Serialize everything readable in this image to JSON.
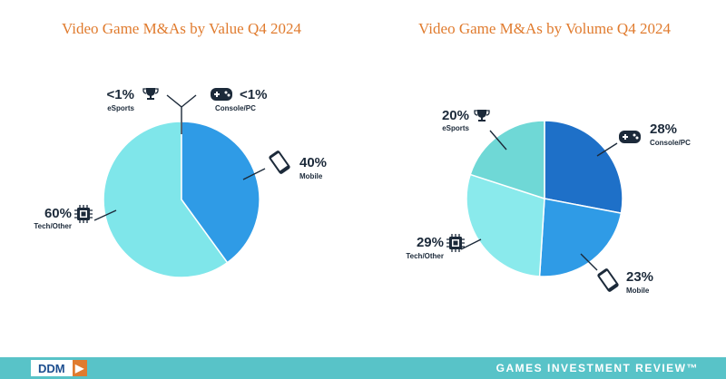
{
  "colors": {
    "light": "#7fe6ea",
    "medium": "#2f9be6",
    "dark": "#1e70c8",
    "ink": "#1c2a3a",
    "accent": "#e07b2e",
    "footer": "#58c3c8"
  },
  "chart_data": [
    {
      "type": "pie",
      "title": "Video Game M&As by Value Q4 2024",
      "slices": [
        {
          "label": "Mobile",
          "value": 40,
          "value_text": "40%",
          "color": "#2f9be6",
          "icon": "smartphone-icon"
        },
        {
          "label": "Tech/Other",
          "value": 60,
          "value_text": "60%",
          "color": "#7fe6ea",
          "icon": "chip-icon"
        },
        {
          "label": "eSports",
          "value": 0,
          "value_text": "<1%",
          "color": "#7fe6ea",
          "icon": "trophy-icon"
        },
        {
          "label": "Console/PC",
          "value": 0,
          "value_text": "<1%",
          "color": "#1e70c8",
          "icon": "gamepad-icon"
        }
      ]
    },
    {
      "type": "pie",
      "title": "Video Game M&As by Volume Q4 2024",
      "slices": [
        {
          "label": "Console/PC",
          "value": 28,
          "value_text": "28%",
          "color": "#1e70c8",
          "icon": "gamepad-icon"
        },
        {
          "label": "Mobile",
          "value": 23,
          "value_text": "23%",
          "color": "#2f9be6",
          "icon": "smartphone-icon"
        },
        {
          "label": "Tech/Other",
          "value": 29,
          "value_text": "29%",
          "color": "#8aeaec",
          "icon": "chip-icon"
        },
        {
          "label": "eSports",
          "value": 20,
          "value_text": "20%",
          "color": "#6fd8d6",
          "icon": "trophy-icon"
        }
      ]
    }
  ],
  "footer": {
    "logo": "DDM",
    "logo_arrow": "▶",
    "brand": "GAMES INVESTMENT REVIEW™"
  }
}
